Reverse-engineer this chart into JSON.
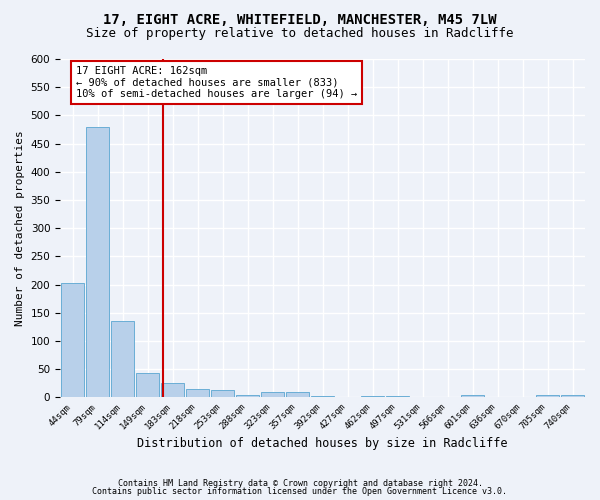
{
  "title1": "17, EIGHT ACRE, WHITEFIELD, MANCHESTER, M45 7LW",
  "title2": "Size of property relative to detached houses in Radcliffe",
  "xlabel": "Distribution of detached houses by size in Radcliffe",
  "ylabel": "Number of detached properties",
  "bin_labels": [
    "44sqm",
    "79sqm",
    "114sqm",
    "149sqm",
    "183sqm",
    "218sqm",
    "253sqm",
    "288sqm",
    "323sqm",
    "357sqm",
    "392sqm",
    "427sqm",
    "462sqm",
    "497sqm",
    "531sqm",
    "566sqm",
    "601sqm",
    "636sqm",
    "670sqm",
    "705sqm",
    "740sqm"
  ],
  "bar_values": [
    203,
    480,
    135,
    43,
    25,
    15,
    13,
    5,
    9,
    9,
    3,
    1,
    2,
    2,
    1,
    1,
    5,
    1,
    1,
    5,
    4
  ],
  "bar_color": "#b8d0ea",
  "bar_edge_color": "#6aaed6",
  "vline_x": 4,
  "vline_color": "#cc0000",
  "annotation_text": "17 EIGHT ACRE: 162sqm\n← 90% of detached houses are smaller (833)\n10% of semi-detached houses are larger (94) →",
  "annotation_box_color": "#ffffff",
  "annotation_box_edge": "#cc0000",
  "ylim": [
    0,
    600
  ],
  "yticks": [
    0,
    50,
    100,
    150,
    200,
    250,
    300,
    350,
    400,
    450,
    500,
    550,
    600
  ],
  "footer1": "Contains HM Land Registry data © Crown copyright and database right 2024.",
  "footer2": "Contains public sector information licensed under the Open Government Licence v3.0.",
  "bg_color": "#eef2f9",
  "grid_color": "#ffffff",
  "title1_fontsize": 10,
  "title2_fontsize": 9
}
